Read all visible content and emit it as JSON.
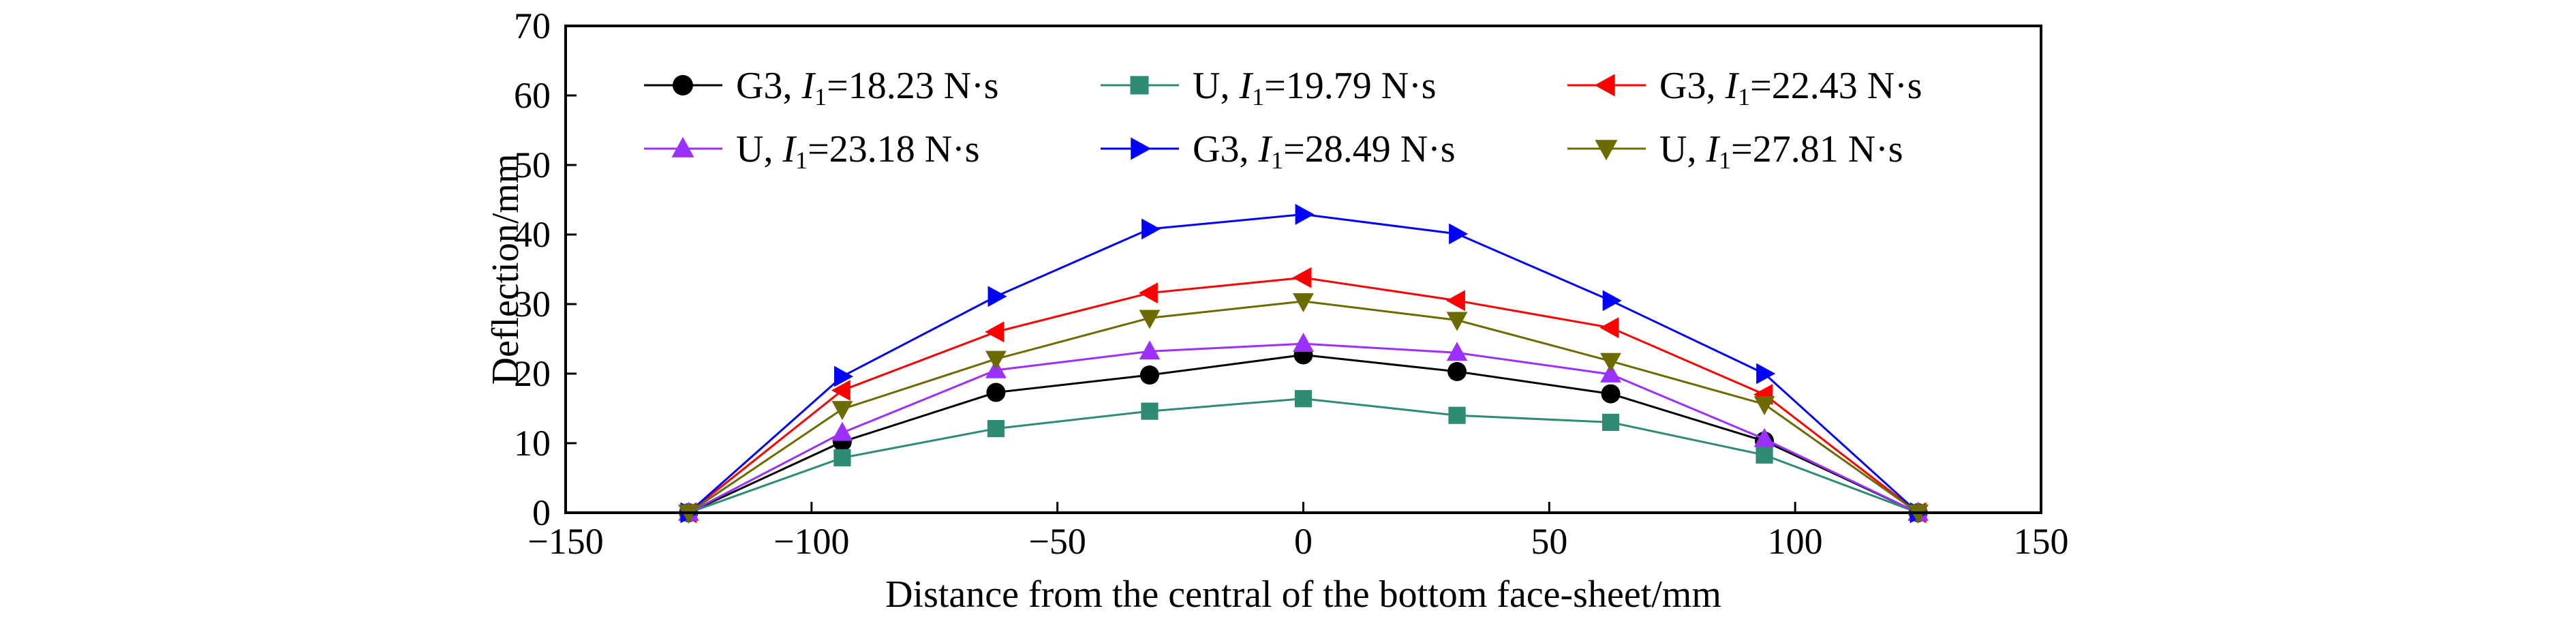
{
  "chart_data": {
    "type": "line",
    "title": "",
    "xlabel": "Distance from the central of the bottom face-sheet/mm",
    "ylabel": "Deflection/mm",
    "xlim": [
      -150,
      150
    ],
    "ylim": [
      0,
      70
    ],
    "xticks": [
      -150,
      -100,
      -50,
      0,
      50,
      100,
      150
    ],
    "yticks": [
      0,
      10,
      20,
      30,
      40,
      50,
      60,
      70
    ],
    "grid": false,
    "legend_position": "top, inside plot, 3 columns",
    "x": [
      -125,
      -93.75,
      -62.5,
      -31.25,
      0,
      31.25,
      62.5,
      93.75,
      125
    ],
    "series": [
      {
        "name": "G3, I1=18.23 N·s",
        "prefix": "G3, ",
        "impulse": "=18.23 N·s",
        "marker": "circle",
        "color": "#000000",
        "values": [
          0,
          10.2,
          17.3,
          19.8,
          22.7,
          20.3,
          17.1,
          10.3,
          0
        ]
      },
      {
        "name": "U, I1=19.79 N·s",
        "prefix": "U, ",
        "impulse": "=19.79 N·s",
        "marker": "square",
        "color": "#2e8b74",
        "values": [
          0,
          7.9,
          12.1,
          14.6,
          16.4,
          14.0,
          13.0,
          8.3,
          0
        ]
      },
      {
        "name": "G3, I1=22.43 N·s",
        "prefix": "G3, ",
        "impulse": "=22.43 N·s",
        "marker": "triangle-left",
        "color": "#ff0000",
        "values": [
          0,
          17.6,
          26.0,
          31.6,
          33.8,
          30.5,
          26.6,
          17.0,
          0
        ]
      },
      {
        "name": "U, I1=23.18 N·s",
        "prefix": "U, ",
        "impulse": "=23.18 N·s",
        "marker": "triangle-up",
        "color": "#9b30ff",
        "values": [
          0,
          11.5,
          20.5,
          23.2,
          24.3,
          23.0,
          19.9,
          10.6,
          0
        ]
      },
      {
        "name": "G3, I1=28.49 N·s",
        "prefix": "G3, ",
        "impulse": "=28.49 N·s",
        "marker": "triangle-right",
        "color": "#0000ff",
        "values": [
          0,
          19.6,
          31.1,
          40.8,
          42.9,
          40.1,
          30.5,
          20.0,
          0
        ]
      },
      {
        "name": "U, I1=27.81 N·s",
        "prefix": "U, ",
        "impulse": "=27.81 N·s",
        "marker": "triangle-down",
        "color": "#6b6b00",
        "values": [
          0,
          14.9,
          22.1,
          28.0,
          30.4,
          27.7,
          21.8,
          15.6,
          0
        ]
      }
    ]
  }
}
